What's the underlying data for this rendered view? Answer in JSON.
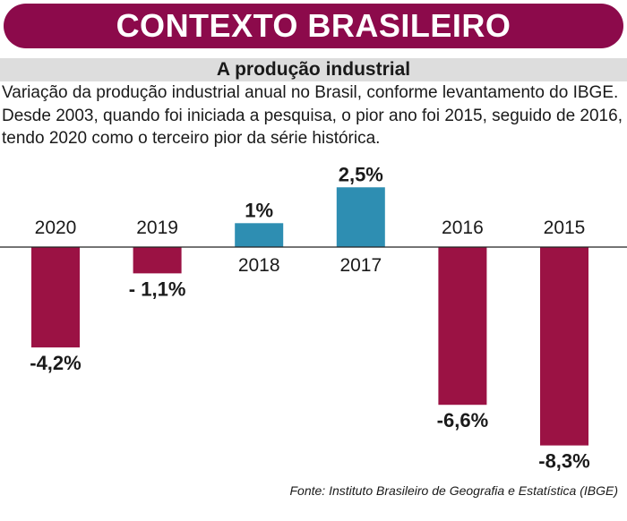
{
  "header": {
    "title": "CONTEXTO BRASILEIRO",
    "subtitle": "A produção industrial",
    "description": "Variação da produção industrial anual no Brasil, conforme levantamento do IBGE. Desde 2003, quando foi iniciada a pesquisa, o pior ano foi 2015, seguido de 2016, tendo 2020 como o terceiro pior da série histórica."
  },
  "chart_data": {
    "type": "bar",
    "title": "A produção industrial",
    "categories": [
      "2020",
      "2019",
      "2018",
      "2017",
      "2016",
      "2015"
    ],
    "values": [
      -4.2,
      -1.1,
      1.0,
      2.5,
      -6.6,
      -8.3
    ],
    "value_labels": [
      "-4,2%",
      "- 1,1%",
      "1%",
      "2,5%",
      "-6,6%",
      "-8,3%"
    ],
    "unit": "%",
    "xlabel": "",
    "ylabel": "",
    "ylim": [
      -8.3,
      2.5
    ],
    "grid": false,
    "colors": {
      "positive": "#2e8eb2",
      "negative": "#9b1244",
      "baseline": "#222222"
    }
  },
  "footer": {
    "source": "Fonte: Instituto Brasileiro de Geografia e Estatística (IBGE)"
  }
}
